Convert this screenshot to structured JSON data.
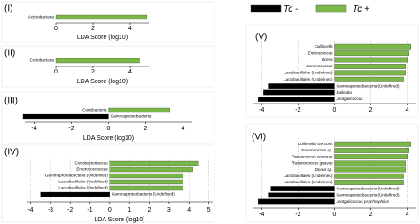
{
  "legend": [
    {
      "name": "Tc -",
      "color": "#000000"
    },
    {
      "name": "Tc +",
      "color": "#7ab648"
    }
  ],
  "chart_data": [
    {
      "type": "bar",
      "orientation": "horizontal",
      "title": "(I)",
      "xlabel": "LDA Score (log10)",
      "categories": [
        "Actinobacteria"
      ],
      "values": [
        4.9
      ],
      "colors": [
        "#7ab648"
      ],
      "xlim": [
        0,
        5
      ],
      "xticks": [
        0,
        2,
        4
      ],
      "grid": false
    },
    {
      "type": "bar",
      "orientation": "horizontal",
      "title": "(II)",
      "xlabel": "LDA Score (log10)",
      "categories": [
        "Coriobacteria"
      ],
      "values": [
        4.5
      ],
      "colors": [
        "#7ab648"
      ],
      "xlim": [
        0,
        5
      ],
      "xticks": [
        0,
        2,
        4
      ],
      "grid": false
    },
    {
      "type": "bar",
      "orientation": "horizontal",
      "title": "(III)",
      "xlabel": "LDA Score (log10)",
      "categories": [
        "Coriobacteria",
        "Gammaproteobacteria"
      ],
      "values": [
        3.3,
        -4.6
      ],
      "colors": [
        "#7ab648",
        "#000000"
      ],
      "xlim": [
        -4.5,
        4.5
      ],
      "xticks": [
        -4,
        -2,
        0,
        2,
        4
      ],
      "grid": false
    },
    {
      "type": "bar",
      "orientation": "horizontal",
      "title": "(IV)",
      "xlabel": "LDA Score (log10)",
      "categories": [
        "Coriobacteriaceae",
        "Enterococcaceae",
        "Gammaproteobacteria (Undefined)",
        "Lactobacillales (Undefined)",
        "Lactobacillales (Undefined)",
        "Gammaproteobacteria (Undefined)"
      ],
      "values": [
        4.5,
        4.2,
        3.7,
        3.7,
        3.7,
        -3.5
      ],
      "colors": [
        "#7ab648",
        "#7ab648",
        "#7ab648",
        "#7ab648",
        "#7ab648",
        "#000000"
      ],
      "xlim": [
        -4.2,
        5.2
      ],
      "xticks": [
        -4,
        -3,
        -2,
        -1,
        0,
        1,
        2,
        3,
        4,
        5
      ],
      "grid": true
    },
    {
      "type": "bar",
      "orientation": "horizontal",
      "title": "(V)",
      "categories": [
        "Collinsella",
        "Enterococcus",
        "Dorea",
        "Ruminococcus",
        "Lactobacillales (Undefined)",
        "Lactobacillales (Undefined)",
        "Gammaproteobacteria (Undefined)",
        "Bulleidia",
        "Jeotgalicoccus"
      ],
      "values": [
        4.2,
        4.1,
        4.0,
        3.9,
        3.9,
        3.8,
        -3.6,
        -3.9,
        -4.2
      ],
      "colors": [
        "#7ab648",
        "#7ab648",
        "#7ab648",
        "#7ab648",
        "#7ab648",
        "#7ab648",
        "#000000",
        "#000000",
        "#000000"
      ],
      "xlim": [
        -4.5,
        4.5
      ],
      "xticks": [
        -4,
        -2,
        0,
        2,
        4
      ],
      "grid": true
    },
    {
      "type": "bar",
      "orientation": "horizontal",
      "title": "(VI)",
      "categories": [
        "Collinsella stercoris",
        "Enterococcus sp.",
        "Enterococcus cecorum",
        "Ruminococcus gnavus",
        "Dorea sp.",
        "Lactobacillales (Undefined)",
        "Lactobacillales (Undefined)",
        "Gammaproteobacteria (Undefined)",
        "Gammaproteobacteria (Undefined)",
        "Jeotgalicoccus psychrophilus"
      ],
      "values": [
        4.2,
        4.1,
        4.0,
        3.9,
        3.9,
        3.8,
        3.8,
        -3.5,
        -3.6,
        -4.2
      ],
      "colors": [
        "#7ab648",
        "#7ab648",
        "#7ab648",
        "#7ab648",
        "#7ab648",
        "#7ab648",
        "#7ab648",
        "#000000",
        "#000000",
        "#000000"
      ],
      "xlim": [
        -4.5,
        4.5
      ],
      "xticks": [
        -4,
        -2,
        0,
        2,
        4
      ],
      "grid": true
    }
  ]
}
